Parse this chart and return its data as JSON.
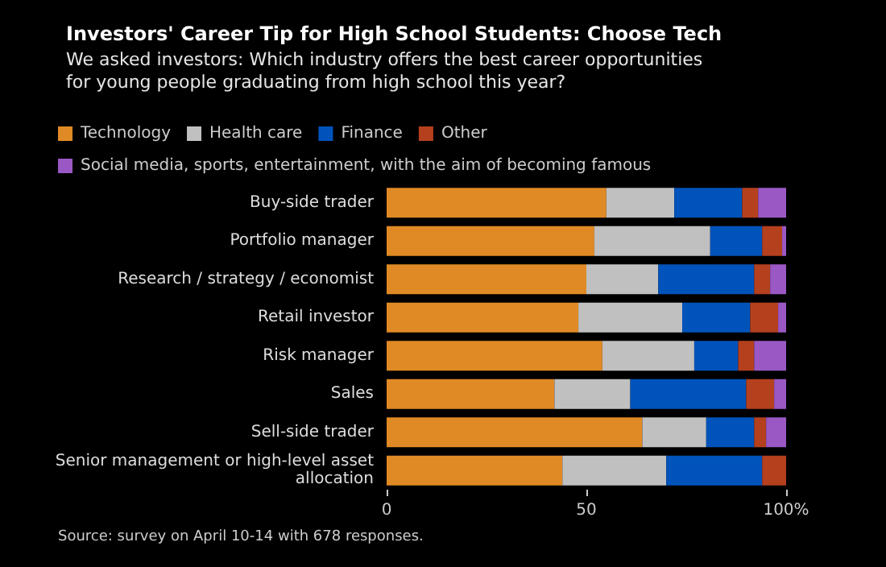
{
  "chart_data": {
    "type": "bar",
    "orientation": "horizontal",
    "stacked": true,
    "title": "Investors' Career Tip for High School Students: Choose Tech",
    "subtitle": "We asked investors: Which industry offers the best career opportunities for young people graduating from high school this year?",
    "categories": [
      "Buy-side trader",
      "Portfolio manager",
      "Research / strategy / economist",
      "Retail investor",
      "Risk manager",
      "Sales",
      "Sell-side trader",
      "Senior management or high-level asset allocation"
    ],
    "series": [
      {
        "name": "Technology",
        "color": "#e08a25",
        "values": [
          55,
          52,
          50,
          48,
          54,
          42,
          64,
          44
        ]
      },
      {
        "name": "Health care",
        "color": "#c0c0c0",
        "values": [
          17,
          29,
          18,
          26,
          23,
          19,
          16,
          26
        ]
      },
      {
        "name": "Finance",
        "color": "#0053ba",
        "values": [
          17,
          13,
          24,
          17,
          11,
          29,
          12,
          24
        ]
      },
      {
        "name": "Other",
        "color": "#b5401e",
        "values": [
          4,
          5,
          4,
          7,
          4,
          7,
          3,
          6
        ]
      },
      {
        "name": "Social media, sports, entertainment, with the aim of becoming famous",
        "color": "#9a58c4",
        "values": [
          7,
          1,
          4,
          2,
          8,
          3,
          5,
          0
        ]
      }
    ],
    "xlim": [
      0,
      100
    ],
    "xticks": [
      0,
      50,
      {
        "value": 100,
        "label": "100%"
      }
    ],
    "grid": false,
    "legend": "top",
    "annotations": [
      "Source: survey on April 10-14 with 678 responses."
    ]
  }
}
